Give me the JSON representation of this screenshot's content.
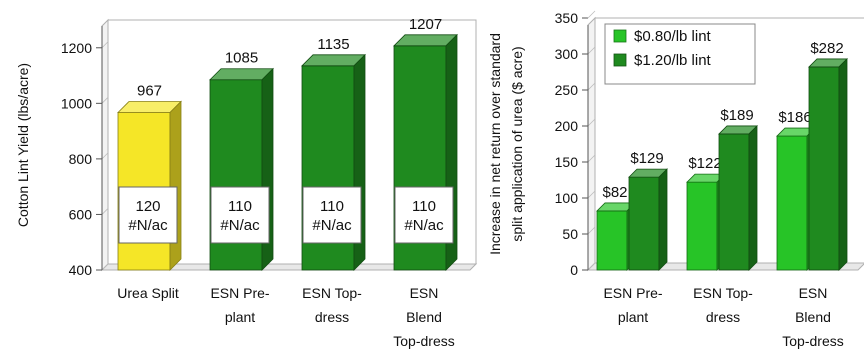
{
  "chart_data": [
    {
      "type": "bar",
      "title": "",
      "ylabel": "Cotton Lint Yield (lbs/acre)",
      "xlabel": "",
      "ylim": [
        400,
        1300
      ],
      "yticks": [
        400,
        600,
        800,
        1000,
        1200
      ],
      "categories": [
        [
          "Urea Split"
        ],
        [
          "ESN Pre-",
          "plant"
        ],
        [
          "ESN Top-",
          "dress"
        ],
        [
          "ESN",
          "Blend",
          "Top-dress"
        ]
      ],
      "values": [
        967,
        1085,
        1135,
        1207
      ],
      "value_labels": [
        "967",
        "1085",
        "1135",
        "1207"
      ],
      "rate_labels": [
        [
          "120",
          "#N/ac"
        ],
        [
          "110",
          "#N/ac"
        ],
        [
          "110",
          "#N/ac"
        ],
        [
          "110",
          "#N/ac"
        ]
      ],
      "bar_colors": [
        "#f5e627",
        "#1f8a1f",
        "#1f8a1f",
        "#1f8a1f"
      ],
      "grid": false
    },
    {
      "type": "bar",
      "title": "",
      "ylabel": [
        "Increase in net return over standard",
        "split application of urea ($ acre)"
      ],
      "xlabel": "",
      "ylim": [
        0,
        350
      ],
      "yticks": [
        0,
        50,
        100,
        150,
        200,
        250,
        300,
        350
      ],
      "categories": [
        [
          "ESN Pre-",
          "plant"
        ],
        [
          "ESN Top-",
          "dress"
        ],
        [
          "ESN",
          "Blend",
          "Top-dress"
        ]
      ],
      "series": [
        {
          "name": "$0.80/lb lint",
          "values": [
            82,
            122,
            186
          ],
          "labels": [
            "$82",
            "$122",
            "$186"
          ],
          "color": "#27c427"
        },
        {
          "name": "$1.20/lb lint",
          "values": [
            129,
            189,
            282
          ],
          "labels": [
            "$129",
            "$189",
            "$282"
          ],
          "color": "#1f8a1f"
        }
      ],
      "legend": "top-left",
      "grid": false
    }
  ]
}
